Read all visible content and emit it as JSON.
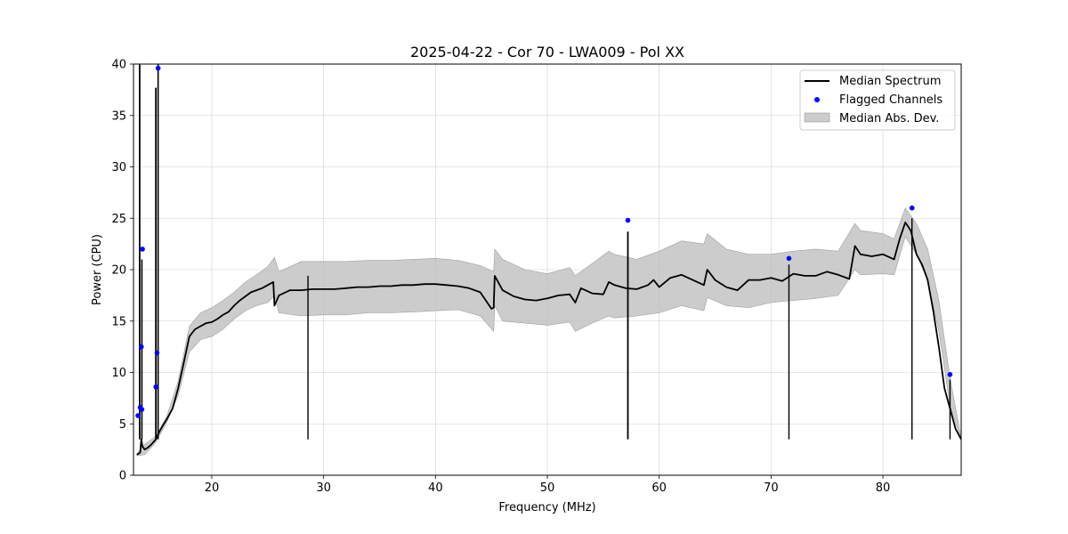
{
  "chart_data": {
    "type": "line",
    "title": "2025-04-22 - Cor 70 - LWA009 - Pol XX",
    "xlabel": "Frequency (MHz)",
    "ylabel": "Power (CPU)",
    "xlim": [
      13.0,
      87.0
    ],
    "ylim": [
      0,
      40
    ],
    "xticks": [
      20,
      30,
      40,
      50,
      60,
      70,
      80
    ],
    "yticks": [
      0,
      5,
      10,
      15,
      20,
      25,
      30,
      35,
      40
    ],
    "grid": true,
    "legend_position": "top-right",
    "legend": [
      "Median Spectrum",
      "Flagged Channels",
      "Median Abs. Dev."
    ],
    "colors": {
      "median": "#000000",
      "flagged": "#0000ff",
      "band": "#bfbfbf",
      "grid": "#b0b0b0"
    },
    "series": [
      {
        "name": "Median Spectrum",
        "x": [
          13.3,
          13.6,
          13.7,
          13.8,
          14.0,
          14.3,
          14.6,
          15.0,
          15.3,
          15.6,
          16.0,
          16.5,
          17.0,
          17.5,
          18.0,
          18.5,
          19.0,
          19.5,
          20.0,
          20.5,
          21.0,
          21.5,
          22.0,
          22.5,
          23.0,
          23.5,
          24.0,
          24.5,
          25.0,
          25.5,
          25.6,
          26.0,
          27.0,
          28.0,
          29.0,
          30.0,
          31.0,
          32.0,
          33.0,
          34.0,
          35.0,
          36.0,
          37.0,
          38.0,
          39.0,
          40.0,
          41.0,
          42.0,
          43.0,
          44.0,
          45.0,
          45.2,
          45.3,
          46.0,
          47.0,
          48.0,
          49.0,
          50.0,
          51.0,
          52.0,
          52.5,
          53.0,
          54.0,
          55.0,
          55.5,
          56.0,
          57.0,
          58.0,
          59.0,
          59.5,
          60.0,
          61.0,
          62.0,
          63.0,
          64.0,
          64.3,
          65.0,
          66.0,
          67.0,
          68.0,
          69.0,
          70.0,
          71.0,
          72.0,
          73.0,
          74.0,
          75.0,
          76.0,
          77.0,
          77.5,
          78.0,
          79.0,
          80.0,
          81.0,
          81.5,
          82.0,
          82.5,
          83.0,
          83.5,
          84.0,
          84.5,
          85.0,
          85.5,
          86.0,
          86.5,
          87.0
        ],
        "y": [
          2.0,
          2.2,
          3.5,
          2.8,
          2.5,
          2.7,
          3.0,
          3.5,
          4.2,
          4.8,
          5.5,
          6.5,
          8.5,
          11.0,
          13.5,
          14.2,
          14.5,
          14.8,
          14.9,
          15.2,
          15.6,
          15.9,
          16.5,
          17.0,
          17.4,
          17.8,
          18.0,
          18.2,
          18.5,
          18.8,
          16.5,
          17.5,
          18.0,
          18.0,
          18.1,
          18.1,
          18.1,
          18.2,
          18.3,
          18.3,
          18.4,
          18.4,
          18.5,
          18.5,
          18.6,
          18.6,
          18.5,
          18.4,
          18.2,
          17.8,
          16.2,
          16.3,
          19.4,
          18.0,
          17.4,
          17.1,
          17.0,
          17.2,
          17.5,
          17.6,
          16.8,
          18.2,
          17.7,
          17.6,
          18.8,
          18.5,
          18.2,
          18.1,
          18.5,
          19.0,
          18.3,
          19.2,
          19.5,
          19.0,
          18.5,
          20.0,
          19.0,
          18.3,
          18.0,
          19.0,
          19.0,
          19.2,
          18.9,
          19.6,
          19.4,
          19.4,
          19.8,
          19.5,
          19.1,
          22.3,
          21.5,
          21.3,
          21.5,
          21.0,
          23.0,
          24.6,
          23.8,
          21.5,
          20.5,
          19.0,
          16.0,
          12.5,
          8.5,
          6.5,
          4.5,
          3.5
        ]
      },
      {
        "name": "Median Abs. Dev.",
        "x": [
          13.3,
          14.0,
          15.0,
          16.0,
          17.0,
          18.0,
          19.0,
          20.0,
          21.0,
          22.0,
          23.0,
          24.0,
          25.0,
          25.6,
          26.0,
          28.0,
          30.0,
          32.0,
          34.0,
          36.0,
          38.0,
          40.0,
          42.0,
          44.0,
          45.2,
          45.3,
          46.0,
          48.0,
          50.0,
          52.0,
          52.5,
          54.0,
          55.5,
          56.0,
          58.0,
          60.0,
          62.0,
          64.0,
          64.3,
          66.0,
          68.0,
          70.0,
          72.0,
          74.0,
          76.0,
          77.5,
          78.0,
          80.0,
          81.0,
          82.0,
          83.0,
          84.0,
          85.0,
          86.0,
          87.0
        ],
        "upper": [
          2.1,
          3.0,
          3.8,
          5.8,
          9.2,
          14.5,
          15.8,
          16.3,
          17.0,
          17.8,
          18.8,
          19.5,
          20.3,
          21.2,
          19.8,
          20.8,
          20.8,
          20.8,
          20.9,
          20.9,
          21.0,
          21.1,
          20.9,
          20.4,
          19.8,
          22.0,
          21.0,
          20.0,
          19.6,
          20.2,
          19.4,
          20.6,
          21.8,
          21.5,
          21.0,
          21.8,
          22.8,
          22.5,
          23.5,
          22.0,
          21.5,
          21.5,
          21.8,
          22.0,
          21.8,
          24.5,
          23.8,
          23.5,
          23.0,
          26.0,
          24.5,
          22.0,
          17.0,
          9.5,
          3.6
        ],
        "lower": [
          1.9,
          2.0,
          3.2,
          5.2,
          7.8,
          12.0,
          13.2,
          13.5,
          14.2,
          15.2,
          16.0,
          16.5,
          16.8,
          17.5,
          15.8,
          15.5,
          15.6,
          15.6,
          15.8,
          15.8,
          15.9,
          16.0,
          16.1,
          15.5,
          14.0,
          16.5,
          15.0,
          14.8,
          14.6,
          14.9,
          14.0,
          14.8,
          15.5,
          15.3,
          15.5,
          15.8,
          16.5,
          16.0,
          17.3,
          16.5,
          16.3,
          16.8,
          17.0,
          17.2,
          17.5,
          20.0,
          19.5,
          19.6,
          19.5,
          23.2,
          21.5,
          19.0,
          14.0,
          6.8,
          3.4
        ]
      },
      {
        "name": "Flagged Channels",
        "x": [
          13.4,
          13.6,
          13.75,
          13.8,
          13.7,
          15.0,
          15.1,
          15.2,
          57.2,
          71.6,
          82.6,
          86.0
        ],
        "y": [
          5.8,
          6.6,
          6.4,
          22.0,
          12.5,
          8.6,
          11.9,
          39.6,
          24.8,
          21.1,
          26.0,
          9.8
        ]
      }
    ],
    "spikes": [
      {
        "x": 13.55,
        "top": 40.5,
        "width": 1.8
      },
      {
        "x": 13.75,
        "top": 21.0,
        "width": 1.6
      },
      {
        "x": 15.0,
        "top": 37.7,
        "width": 1.8
      },
      {
        "x": 15.2,
        "top": 40.5,
        "width": 1.6
      },
      {
        "x": 28.6,
        "top": 19.4,
        "width": 1.4
      },
      {
        "x": 57.2,
        "top": 23.7,
        "width": 1.8
      },
      {
        "x": 71.6,
        "top": 20.5,
        "width": 1.4
      },
      {
        "x": 82.6,
        "top": 25.0,
        "width": 1.4
      },
      {
        "x": 86.0,
        "top": 9.3,
        "width": 1.4
      }
    ]
  }
}
